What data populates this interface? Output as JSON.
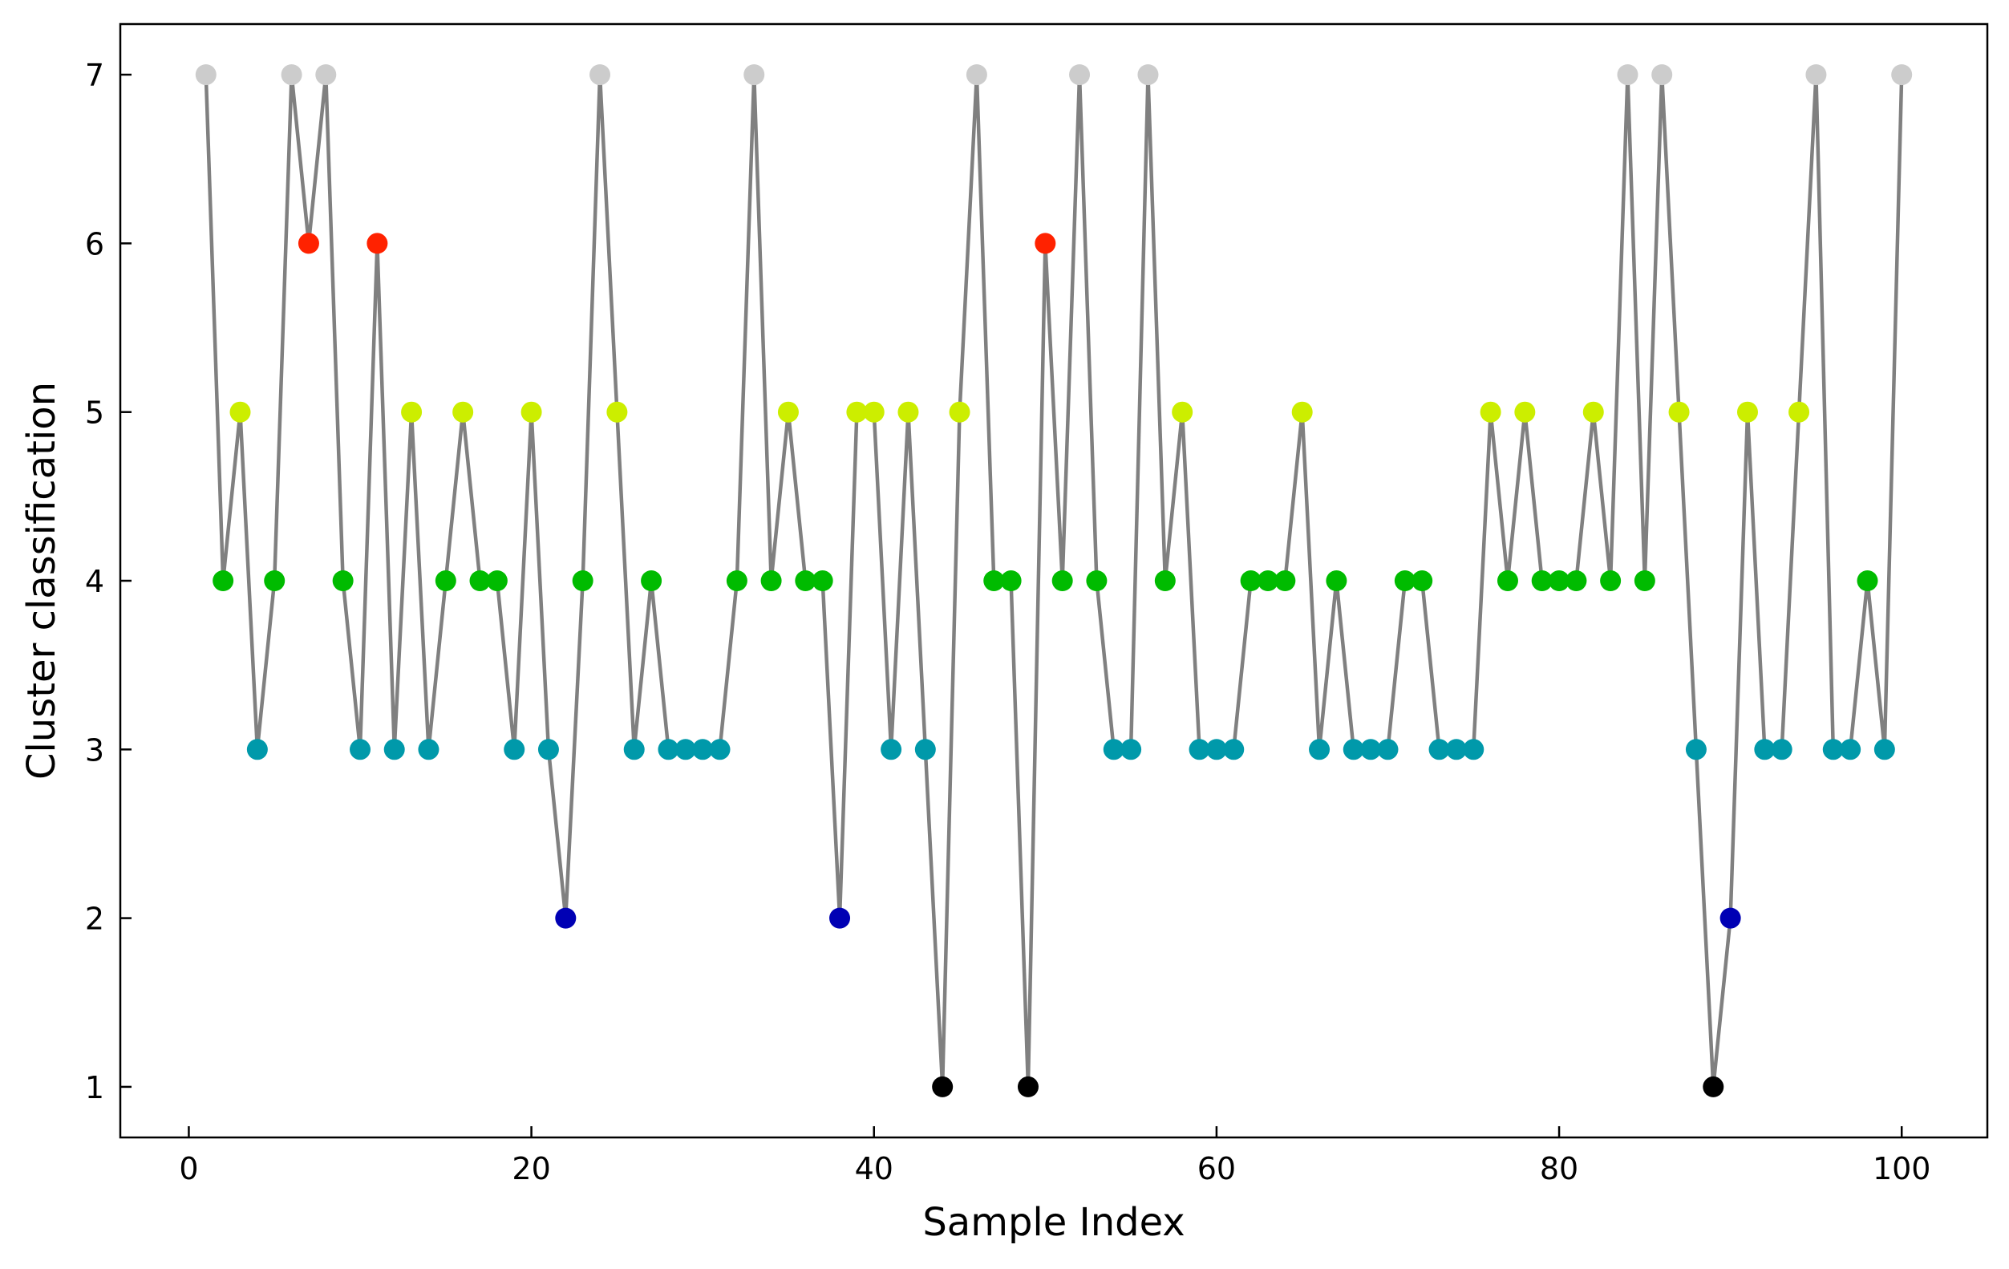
{
  "chart_data": {
    "type": "line",
    "title": "",
    "xlabel": "Sample Index",
    "ylabel": "Cluster classification",
    "xlim": [
      -4,
      105
    ],
    "ylim": [
      0.7,
      7.3
    ],
    "xticks": [
      0,
      20,
      40,
      60,
      80,
      100
    ],
    "yticks": [
      1,
      2,
      3,
      4,
      5,
      6,
      7
    ],
    "grid": false,
    "legend": "none",
    "line_color": "#808080",
    "cluster_colors": {
      "1": "#000000",
      "2": "#0000b4",
      "3": "#0099aa",
      "4": "#00bb00",
      "5": "#ccee00",
      "6": "#ff2200",
      "7": "#cccccc"
    },
    "x": [
      1,
      2,
      3,
      4,
      5,
      6,
      7,
      8,
      9,
      10,
      11,
      12,
      13,
      14,
      15,
      16,
      17,
      18,
      19,
      20,
      21,
      22,
      23,
      24,
      25,
      26,
      27,
      28,
      29,
      30,
      31,
      32,
      33,
      34,
      35,
      36,
      37,
      38,
      39,
      40,
      41,
      42,
      43,
      44,
      45,
      46,
      47,
      48,
      49,
      50,
      51,
      52,
      53,
      54,
      55,
      56,
      57,
      58,
      59,
      60,
      61,
      62,
      63,
      64,
      65,
      66,
      67,
      68,
      69,
      70,
      71,
      72,
      73,
      74,
      75,
      76,
      77,
      78,
      79,
      80,
      81,
      82,
      83,
      84,
      85,
      86,
      87,
      88,
      89,
      90,
      91,
      92,
      93,
      94,
      95,
      96,
      97,
      98,
      99,
      100
    ],
    "values": [
      7,
      4,
      5,
      3,
      4,
      7,
      6,
      7,
      4,
      3,
      6,
      3,
      5,
      3,
      4,
      5,
      4,
      4,
      3,
      5,
      3,
      2,
      4,
      7,
      5,
      3,
      4,
      3,
      3,
      3,
      3,
      4,
      7,
      4,
      5,
      4,
      4,
      2,
      5,
      5,
      3,
      5,
      3,
      1,
      5,
      7,
      4,
      4,
      1,
      6,
      4,
      7,
      4,
      3,
      3,
      7,
      4,
      5,
      3,
      3,
      3,
      4,
      4,
      4,
      5,
      3,
      4,
      3,
      3,
      3,
      4,
      4,
      3,
      3,
      3,
      5,
      4,
      5,
      4,
      4,
      4,
      5,
      4,
      7,
      4,
      7,
      5,
      3,
      1,
      2,
      5,
      3,
      3,
      5,
      7,
      3,
      3,
      4,
      3,
      7
    ]
  }
}
